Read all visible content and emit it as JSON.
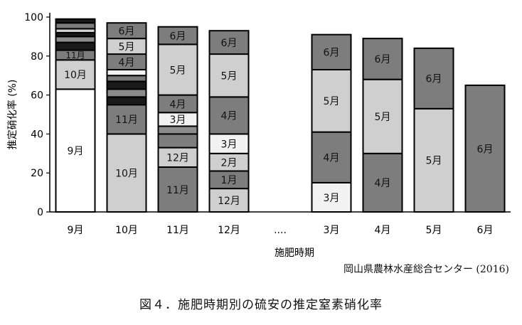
{
  "chart_data": {
    "type": "bar",
    "stacked": true,
    "title": "",
    "ylabel": "推定硝化率 (%)",
    "xlabel": "施肥時期",
    "ylim": [
      0,
      100
    ],
    "yticks": [
      0,
      20,
      40,
      60,
      80,
      100
    ],
    "categories": [
      "9月",
      "10月",
      "11月",
      "12月",
      "....",
      "3月",
      "4月",
      "5月",
      "6月"
    ],
    "stacks": [
      {
        "category": "9月",
        "total": 99,
        "segments": [
          {
            "label": "9月",
            "value": 63,
            "color": "#ffffff"
          },
          {
            "label": "10月",
            "value": 15,
            "color": "#cfcfcf"
          },
          {
            "label": "11月",
            "value": 5,
            "color": "#7d7d7d"
          },
          {
            "label": "",
            "value": 4,
            "color": "#1a1a1a"
          },
          {
            "label": "",
            "value": 3,
            "color": "#8c8c8c"
          },
          {
            "label": "",
            "value": 2,
            "color": "#1a1a1a"
          },
          {
            "label": "",
            "value": 2,
            "color": "#d4d4d4"
          },
          {
            "label": "",
            "value": 3,
            "color": "#7a7a7a"
          },
          {
            "label": "",
            "value": 2,
            "color": "#1a1a1a"
          }
        ]
      },
      {
        "category": "10月",
        "total": 97,
        "segments": [
          {
            "label": "10月",
            "value": 40,
            "color": "#cfcfcf"
          },
          {
            "label": "11月",
            "value": 15,
            "color": "#7d7d7d"
          },
          {
            "label": "",
            "value": 4,
            "color": "#1a1a1a"
          },
          {
            "label": "",
            "value": 4,
            "color": "#8c8c8c"
          },
          {
            "label": "",
            "value": 4,
            "color": "#1a1a1a"
          },
          {
            "label": "",
            "value": 3,
            "color": "#7a7a7a"
          },
          {
            "label": "",
            "value": 3,
            "color": "#f2f2f2"
          },
          {
            "label": "4月",
            "value": 8,
            "color": "#7d7d7d"
          },
          {
            "label": "5月",
            "value": 8,
            "color": "#cfcfcf"
          },
          {
            "label": "6月",
            "value": 8,
            "color": "#7d7d7d"
          }
        ]
      },
      {
        "category": "11月",
        "total": 95,
        "segments": [
          {
            "label": "11月",
            "value": 23,
            "color": "#7d7d7d"
          },
          {
            "label": "12月",
            "value": 10,
            "color": "#cfcfcf"
          },
          {
            "label": "",
            "value": 7,
            "color": "#7d7d7d"
          },
          {
            "label": "",
            "value": 4,
            "color": "#8c8c8c"
          },
          {
            "label": "3月",
            "value": 7,
            "color": "#f2f2f2"
          },
          {
            "label": "4月",
            "value": 9,
            "color": "#7d7d7d"
          },
          {
            "label": "5月",
            "value": 26,
            "color": "#cfcfcf"
          },
          {
            "label": "6月",
            "value": 9,
            "color": "#7d7d7d"
          }
        ]
      },
      {
        "category": "12月",
        "total": 93,
        "segments": [
          {
            "label": "12月",
            "value": 12,
            "color": "#cfcfcf"
          },
          {
            "label": "1月",
            "value": 9,
            "color": "#7d7d7d"
          },
          {
            "label": "2月",
            "value": 9,
            "color": "#cfcfcf"
          },
          {
            "label": "3月",
            "value": 10,
            "color": "#f2f2f2"
          },
          {
            "label": "4月",
            "value": 19,
            "color": "#7d7d7d"
          },
          {
            "label": "5月",
            "value": 22,
            "color": "#cfcfcf"
          },
          {
            "label": "6月",
            "value": 12,
            "color": "#7d7d7d"
          }
        ]
      },
      {
        "category": "....",
        "total": 0,
        "segments": []
      },
      {
        "category": "3月",
        "total": 91,
        "segments": [
          {
            "label": "3月",
            "value": 15,
            "color": "#f2f2f2"
          },
          {
            "label": "4月",
            "value": 26,
            "color": "#7d7d7d"
          },
          {
            "label": "5月",
            "value": 32,
            "color": "#cfcfcf"
          },
          {
            "label": "6月",
            "value": 18,
            "color": "#7d7d7d"
          }
        ]
      },
      {
        "category": "4月",
        "total": 89,
        "segments": [
          {
            "label": "4月",
            "value": 30,
            "color": "#7d7d7d"
          },
          {
            "label": "5月",
            "value": 38,
            "color": "#cfcfcf"
          },
          {
            "label": "6月",
            "value": 21,
            "color": "#7d7d7d"
          }
        ]
      },
      {
        "category": "5月",
        "total": 84,
        "segments": [
          {
            "label": "5月",
            "value": 53,
            "color": "#cfcfcf"
          },
          {
            "label": "6月",
            "value": 31,
            "color": "#7d7d7d"
          }
        ]
      },
      {
        "category": "6月",
        "total": 65,
        "segments": [
          {
            "label": "6月",
            "value": 65,
            "color": "#7d7d7d"
          }
        ]
      }
    ],
    "source": "岡山県農林水産総合センター (2016)",
    "caption": "図４．施肥時期別の硫安の推定窒素硝化率",
    "grid": false,
    "legend": "none"
  }
}
